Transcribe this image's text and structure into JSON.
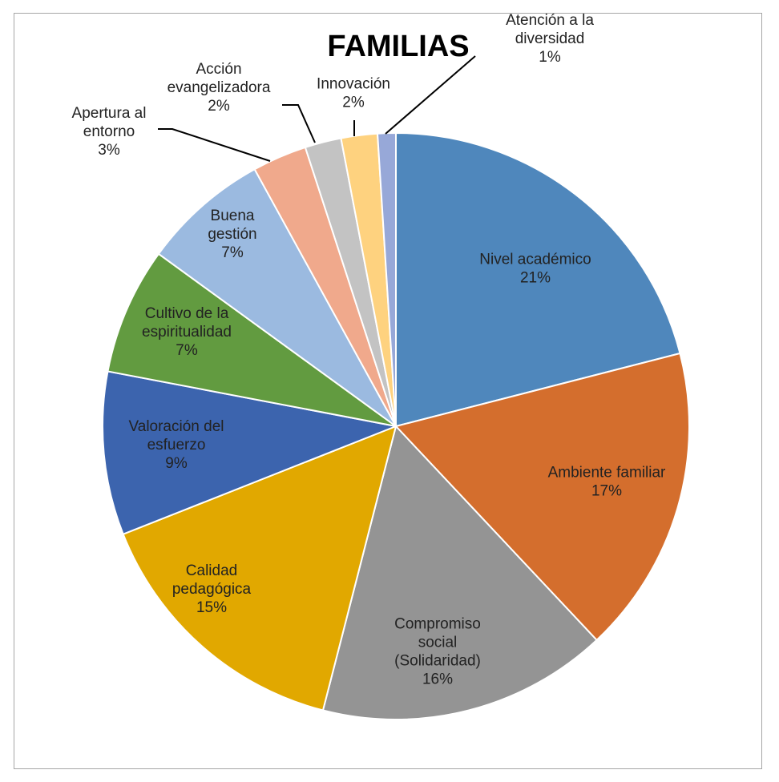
{
  "chart_data": {
    "type": "pie",
    "title": "FAMILIAS",
    "series": [
      {
        "name": "Nivel académico",
        "label": [
          "Nivel académico"
        ],
        "pct_label": "21%",
        "value": 21,
        "color": "#4f87bc"
      },
      {
        "name": "Ambiente familiar",
        "label": [
          "Ambiente familiar"
        ],
        "pct_label": "17%",
        "value": 17,
        "color": "#d46e2d"
      },
      {
        "name": "Compromiso social (Solidaridad)",
        "label": [
          "Compromiso",
          "social",
          "(Solidaridad)"
        ],
        "pct_label": "16%",
        "value": 16,
        "color": "#949494"
      },
      {
        "name": "Calidad pedagógica",
        "label": [
          "Calidad",
          "pedagógica"
        ],
        "pct_label": "15%",
        "value": 15,
        "color": "#e1a800"
      },
      {
        "name": "Valoración del esfuerzo",
        "label": [
          "Valoración del",
          "esfuerzo"
        ],
        "pct_label": "9%",
        "value": 9,
        "color": "#3c64ae"
      },
      {
        "name": "Cultivo de la espiritualidad",
        "label": [
          "Cultivo de la",
          "espiritualidad"
        ],
        "pct_label": "7%",
        "value": 7,
        "color": "#629b40"
      },
      {
        "name": "Buena gestión",
        "label": [
          "Buena",
          "gestión"
        ],
        "pct_label": "7%",
        "value": 7,
        "color": "#9bbae0"
      },
      {
        "name": "Apertura al entorno",
        "label": [
          "Apertura al",
          "entorno"
        ],
        "pct_label": "3%",
        "value": 3,
        "color": "#f0a98c"
      },
      {
        "name": "Acción evangelizadora",
        "label": [
          "Acción",
          "evangelizadora"
        ],
        "pct_label": "2%",
        "value": 2,
        "color": "#c3c3c3"
      },
      {
        "name": "Innovación",
        "label": [
          "Innovación"
        ],
        "pct_label": "2%",
        "value": 2,
        "color": "#fed27f"
      },
      {
        "name": "Atención a la diversidad",
        "label": [
          "Atención a la",
          "diversidad"
        ],
        "pct_label": "1%",
        "value": 1,
        "color": "#97a8d8"
      }
    ]
  }
}
